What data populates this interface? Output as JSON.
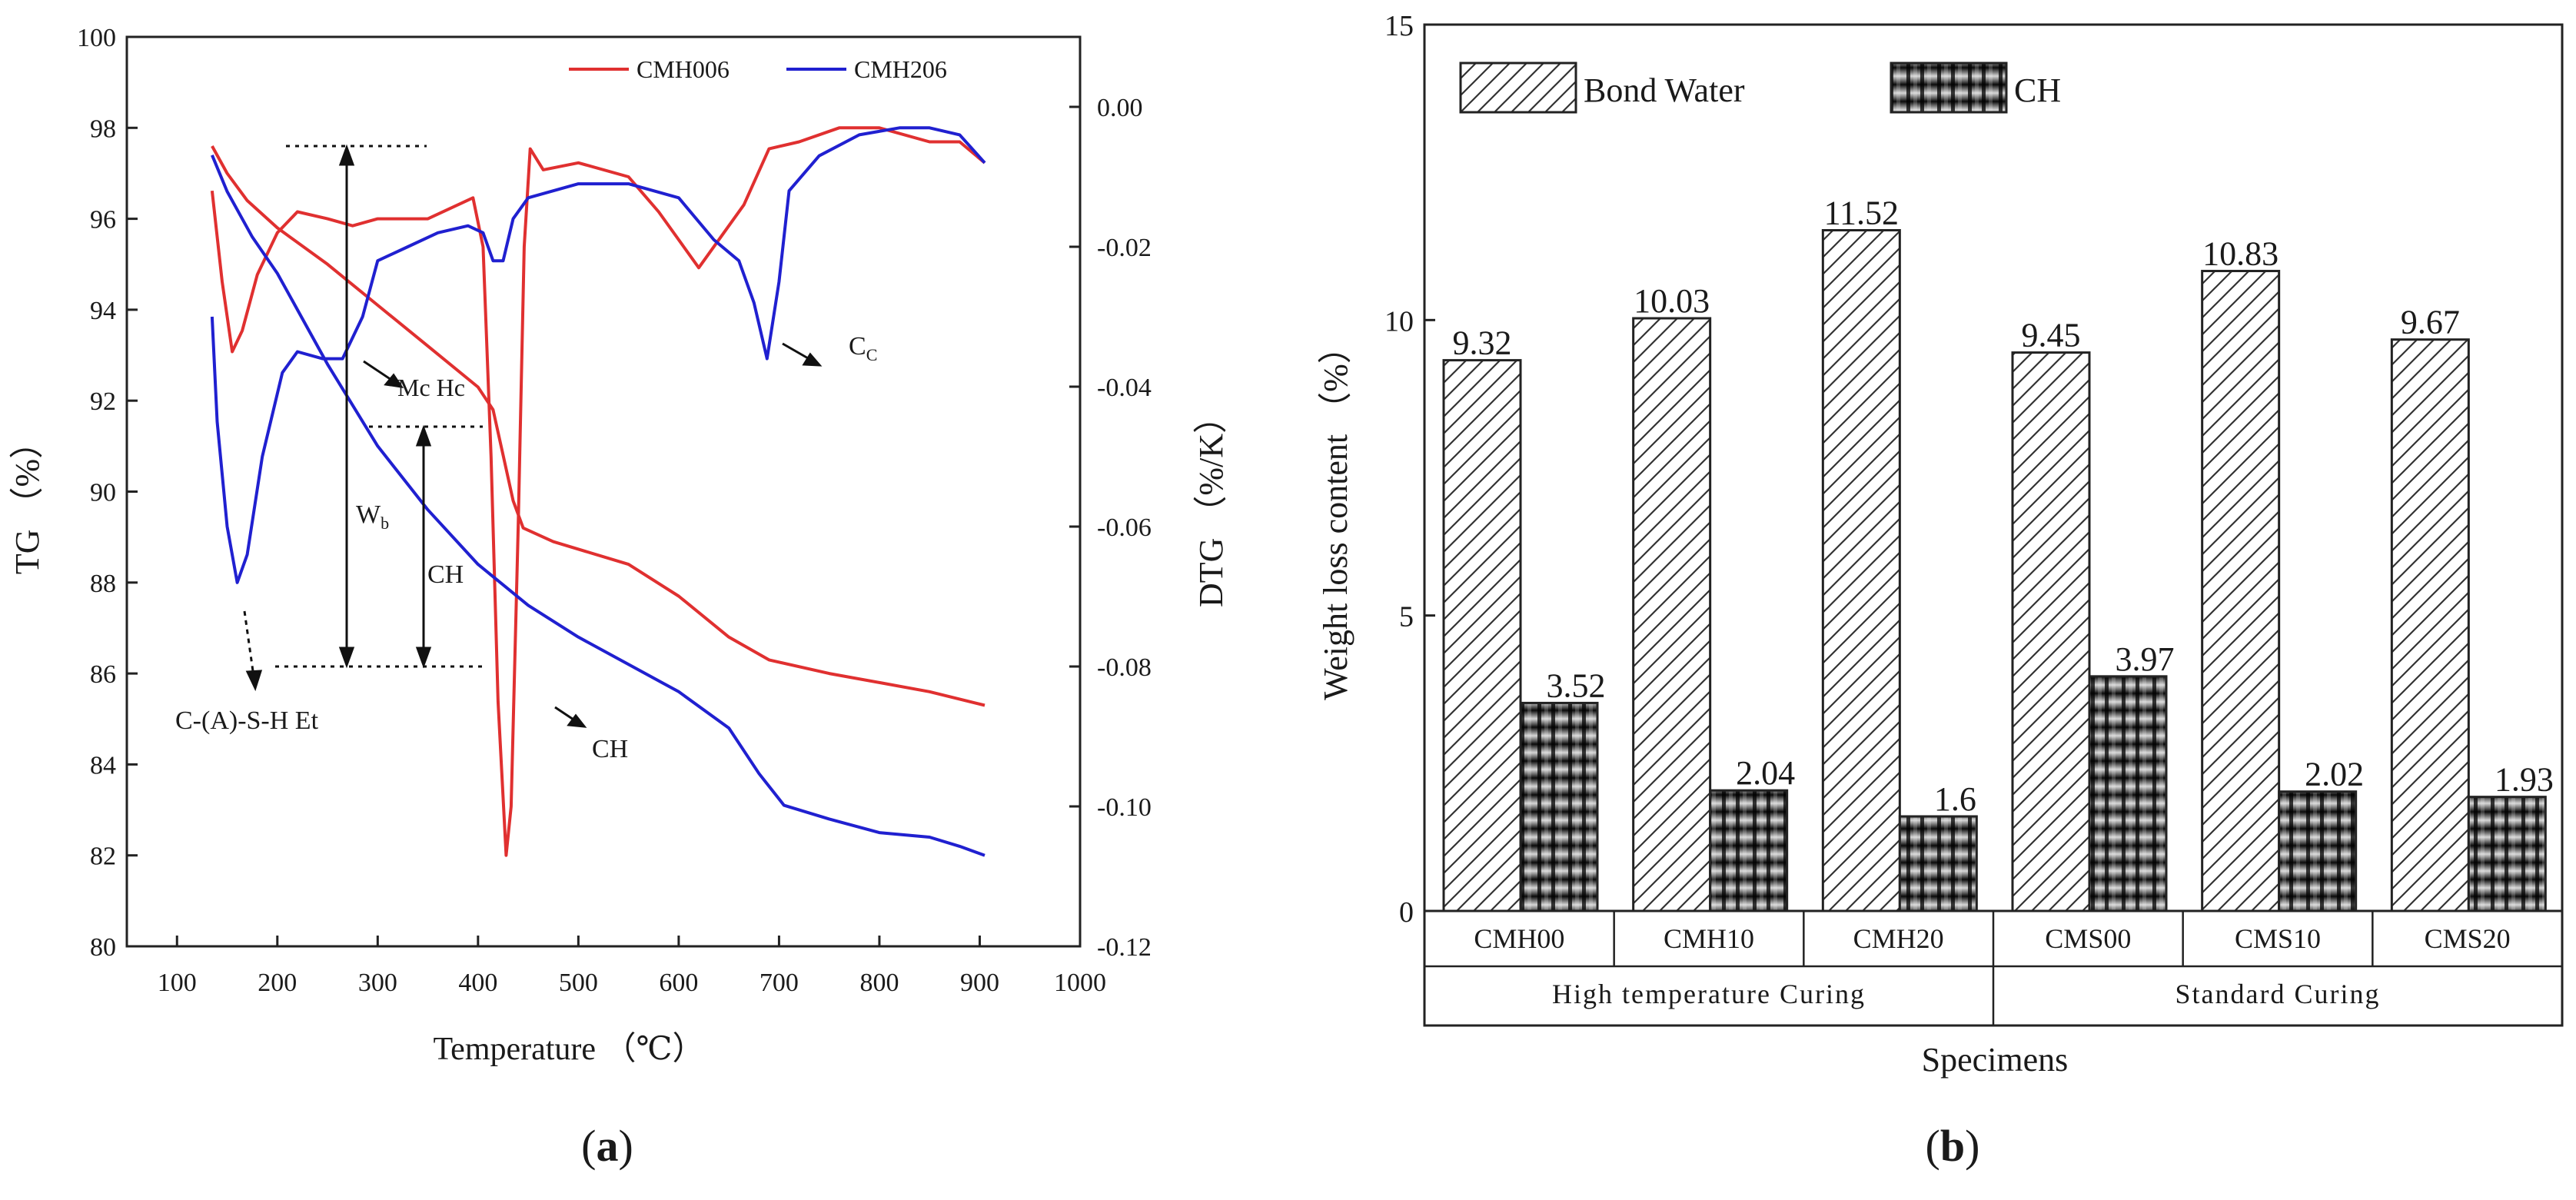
{
  "chart_data": [
    {
      "type": "line",
      "panel_label": "(a)",
      "xlabel": "Temperature （℃）",
      "ylabel_left": "TG （%）",
      "ylabel_right": "DTG （%/K）",
      "xlim": [
        50,
        1000
      ],
      "ylim_left": [
        80,
        100
      ],
      "ylim_right": [
        -0.12,
        0.01
      ],
      "x_ticks": [
        "100",
        "200",
        "300",
        "400",
        "500",
        "600",
        "700",
        "800",
        "900",
        "1000"
      ],
      "y_left_ticks": [
        "80",
        "82",
        "84",
        "86",
        "88",
        "90",
        "92",
        "94",
        "96",
        "98",
        "100"
      ],
      "y_right_ticks": [
        "-0.12",
        "-0.10",
        "-0.08",
        "-0.06",
        "-0.04",
        "-0.02",
        "0.00"
      ],
      "legend": [
        {
          "name": "CMH006",
          "color": "#e03030"
        },
        {
          "name": "CMH206",
          "color": "#2020d0"
        }
      ],
      "series": [
        {
          "name": "CMH006 TG",
          "color": "#e03030",
          "axis": "left",
          "points": [
            [
              135,
              97.6
            ],
            [
              150,
              97.0
            ],
            [
              170,
              96.4
            ],
            [
              200,
              95.8
            ],
            [
              250,
              95.0
            ],
            [
              300,
              94.1
            ],
            [
              350,
              93.2
            ],
            [
              400,
              92.3
            ],
            [
              415,
              91.8
            ],
            [
              425,
              90.8
            ],
            [
              435,
              89.8
            ],
            [
              445,
              89.2
            ],
            [
              475,
              88.9
            ],
            [
              550,
              88.4
            ],
            [
              600,
              87.7
            ],
            [
              650,
              86.8
            ],
            [
              690,
              86.3
            ],
            [
              750,
              86.0
            ],
            [
              800,
              85.8
            ],
            [
              850,
              85.6
            ],
            [
              905,
              85.3
            ]
          ]
        },
        {
          "name": "CMH006 DTG",
          "color": "#e03030",
          "axis": "right",
          "points": [
            [
              135,
              -0.012
            ],
            [
              145,
              -0.025
            ],
            [
              155,
              -0.035
            ],
            [
              165,
              -0.032
            ],
            [
              180,
              -0.024
            ],
            [
              200,
              -0.018
            ],
            [
              220,
              -0.015
            ],
            [
              250,
              -0.016
            ],
            [
              275,
              -0.017
            ],
            [
              300,
              -0.016
            ],
            [
              350,
              -0.016
            ],
            [
              395,
              -0.013
            ],
            [
              405,
              -0.02
            ],
            [
              413,
              -0.05
            ],
            [
              420,
              -0.085
            ],
            [
              428,
              -0.107
            ],
            [
              433,
              -0.1
            ],
            [
              440,
              -0.06
            ],
            [
              446,
              -0.02
            ],
            [
              452,
              -0.006
            ],
            [
              465,
              -0.009
            ],
            [
              500,
              -0.008
            ],
            [
              550,
              -0.01
            ],
            [
              580,
              -0.015
            ],
            [
              605,
              -0.02
            ],
            [
              620,
              -0.023
            ],
            [
              645,
              -0.018
            ],
            [
              665,
              -0.014
            ],
            [
              690,
              -0.006
            ],
            [
              720,
              -0.005
            ],
            [
              760,
              -0.003
            ],
            [
              800,
              -0.003
            ],
            [
              850,
              -0.005
            ],
            [
              880,
              -0.005
            ],
            [
              905,
              -0.008
            ]
          ]
        },
        {
          "name": "CMH206 TG",
          "color": "#2020d0",
          "axis": "left",
          "points": [
            [
              135,
              97.4
            ],
            [
              150,
              96.6
            ],
            [
              175,
              95.6
            ],
            [
              200,
              94.8
            ],
            [
              250,
              92.8
            ],
            [
              300,
              91.0
            ],
            [
              350,
              89.6
            ],
            [
              400,
              88.4
            ],
            [
              450,
              87.5
            ],
            [
              500,
              86.8
            ],
            [
              550,
              86.2
            ],
            [
              600,
              85.6
            ],
            [
              650,
              84.8
            ],
            [
              680,
              83.8
            ],
            [
              705,
              83.1
            ],
            [
              750,
              82.8
            ],
            [
              800,
              82.5
            ],
            [
              850,
              82.4
            ],
            [
              880,
              82.2
            ],
            [
              905,
              82.0
            ]
          ]
        },
        {
          "name": "CMH206 DTG",
          "color": "#2020d0",
          "axis": "right",
          "points": [
            [
              135,
              -0.03
            ],
            [
              140,
              -0.045
            ],
            [
              150,
              -0.06
            ],
            [
              160,
              -0.068
            ],
            [
              170,
              -0.064
            ],
            [
              185,
              -0.05
            ],
            [
              205,
              -0.038
            ],
            [
              220,
              -0.035
            ],
            [
              245,
              -0.036
            ],
            [
              265,
              -0.036
            ],
            [
              285,
              -0.03
            ],
            [
              300,
              -0.022
            ],
            [
              330,
              -0.02
            ],
            [
              360,
              -0.018
            ],
            [
              390,
              -0.017
            ],
            [
              405,
              -0.018
            ],
            [
              415,
              -0.022
            ],
            [
              425,
              -0.022
            ],
            [
              435,
              -0.016
            ],
            [
              450,
              -0.013
            ],
            [
              500,
              -0.011
            ],
            [
              550,
              -0.011
            ],
            [
              600,
              -0.013
            ],
            [
              635,
              -0.019
            ],
            [
              660,
              -0.022
            ],
            [
              675,
              -0.028
            ],
            [
              688,
              -0.036
            ],
            [
              700,
              -0.025
            ],
            [
              710,
              -0.012
            ],
            [
              740,
              -0.007
            ],
            [
              780,
              -0.004
            ],
            [
              820,
              -0.003
            ],
            [
              850,
              -0.003
            ],
            [
              880,
              -0.004
            ],
            [
              905,
              -0.008
            ]
          ]
        }
      ],
      "annotations": [
        "Mc Hc",
        "Cc",
        "CH",
        "C-(A)-S-H Et",
        "Wb",
        "CH"
      ]
    },
    {
      "type": "bar",
      "panel_label": "(b)",
      "xlabel": "Specimens",
      "ylabel": "Weight loss content （%）",
      "ylim": [
        0,
        15
      ],
      "y_ticks": [
        "0",
        "5",
        "10",
        "15"
      ],
      "categories": [
        "CMH00",
        "CMH10",
        "CMH20",
        "CMS00",
        "CMS10",
        "CMS20"
      ],
      "groups": [
        "High temperature Curing",
        "Standard Curing"
      ],
      "series": [
        {
          "name": "Bond Water",
          "values": [
            9.32,
            10.03,
            11.52,
            9.45,
            10.83,
            9.67
          ],
          "labels": [
            "9.32",
            "10.03",
            "11.52",
            "9.45",
            "10.83",
            "9.67"
          ]
        },
        {
          "name": "CH",
          "values": [
            3.52,
            2.04,
            1.6,
            3.97,
            2.02,
            1.93
          ],
          "labels": [
            "3.52",
            "2.04",
            "1.6",
            "3.97",
            "2.02",
            "1.93"
          ]
        }
      ]
    }
  ]
}
